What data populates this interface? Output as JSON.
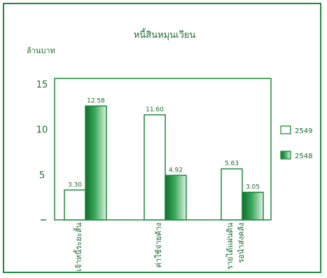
{
  "chart_data": {
    "type": "bar",
    "title": "หนี้สินหมุนเวียน",
    "ylabel": "ล้านบาท",
    "xlabel": "",
    "ylim": [
      0,
      15
    ],
    "yticks": [
      "5",
      "10",
      "15"
    ],
    "categories": [
      [
        "เจ้าหนี้ระยะสั้น"
      ],
      [
        "ค่าใช้จ่ายค้าง"
      ],
      [
        "รายได้แผ่นดิน",
        "รอนำส่งคลัง"
      ]
    ],
    "series": [
      {
        "name": "2549",
        "values": [
          3.3,
          11.6,
          5.63
        ],
        "value_labels": [
          "3.30",
          "11.60",
          "5.63"
        ],
        "color": "#ffffff"
      },
      {
        "name": "2548",
        "values": [
          12.58,
          4.92,
          3.05
        ],
        "value_labels": [
          "12.58",
          "4.92",
          "3.05"
        ],
        "color": "#1e8a3c"
      }
    ],
    "legend": "right",
    "grid": false
  },
  "colors": {
    "accent": "#1e8a3c",
    "text": "#1e6b34"
  }
}
